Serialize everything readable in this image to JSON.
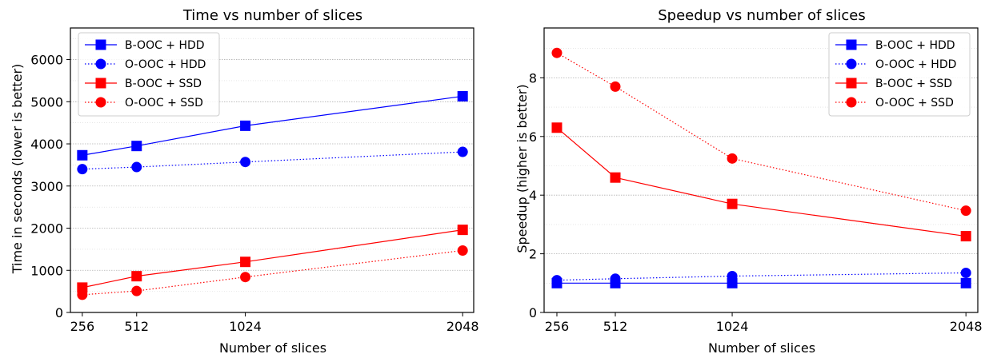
{
  "chart_data": [
    {
      "type": "line",
      "title": "Time vs number of slices",
      "xlabel": "Number of slices",
      "ylabel": "Time in seconds (lower is better)",
      "x": [
        256,
        512,
        1024,
        2048
      ],
      "xticks": [
        "256",
        "512",
        "1024",
        "2048"
      ],
      "yticks": [
        "0",
        "1000",
        "2000",
        "3000",
        "4000",
        "5000",
        "6000"
      ],
      "xlim": [
        200,
        2100
      ],
      "ylim": [
        0,
        6750
      ],
      "grid": "horizontal, dotted",
      "legend": "top-left",
      "series": [
        {
          "name": "B-OOC + HDD",
          "color": "#0000ff",
          "linestyle": "solid",
          "marker": "square",
          "values": [
            3730,
            3950,
            4430,
            5130
          ]
        },
        {
          "name": "O-OOC + HDD",
          "color": "#0000ff",
          "linestyle": "dotted",
          "marker": "circle",
          "values": [
            3400,
            3450,
            3570,
            3810
          ]
        },
        {
          "name": "B-OOC + SSD",
          "color": "#ff0000",
          "linestyle": "solid",
          "marker": "square",
          "values": [
            590,
            860,
            1200,
            1960
          ]
        },
        {
          "name": "O-OOC + SSD",
          "color": "#ff0000",
          "linestyle": "dotted",
          "marker": "circle",
          "values": [
            420,
            510,
            840,
            1470
          ]
        }
      ]
    },
    {
      "type": "line",
      "title": "Speedup vs number of slices",
      "xlabel": "Number of slices",
      "ylabel": "Speedup (higher is better)",
      "x": [
        256,
        512,
        1024,
        2048
      ],
      "xticks": [
        "256",
        "512",
        "1024",
        "2048"
      ],
      "yticks": [
        "0",
        "2",
        "4",
        "6",
        "8"
      ],
      "ylim": [
        0,
        9.7
      ],
      "xlim": [
        200,
        2100
      ],
      "grid": "horizontal, dotted",
      "legend": "top-right",
      "series": [
        {
          "name": "B-OOC + HDD",
          "color": "#0000ff",
          "linestyle": "solid",
          "marker": "square",
          "values": [
            1.0,
            1.0,
            1.0,
            1.0
          ]
        },
        {
          "name": "O-OOC + HDD",
          "color": "#0000ff",
          "linestyle": "dotted",
          "marker": "circle",
          "values": [
            1.1,
            1.15,
            1.24,
            1.35
          ]
        },
        {
          "name": "B-OOC + SSD",
          "color": "#ff0000",
          "linestyle": "solid",
          "marker": "square",
          "values": [
            6.3,
            4.6,
            3.7,
            2.6
          ]
        },
        {
          "name": "O-OOC + SSD",
          "color": "#ff0000",
          "linestyle": "dotted",
          "marker": "circle",
          "values": [
            8.85,
            7.7,
            5.25,
            3.47
          ]
        }
      ]
    }
  ]
}
